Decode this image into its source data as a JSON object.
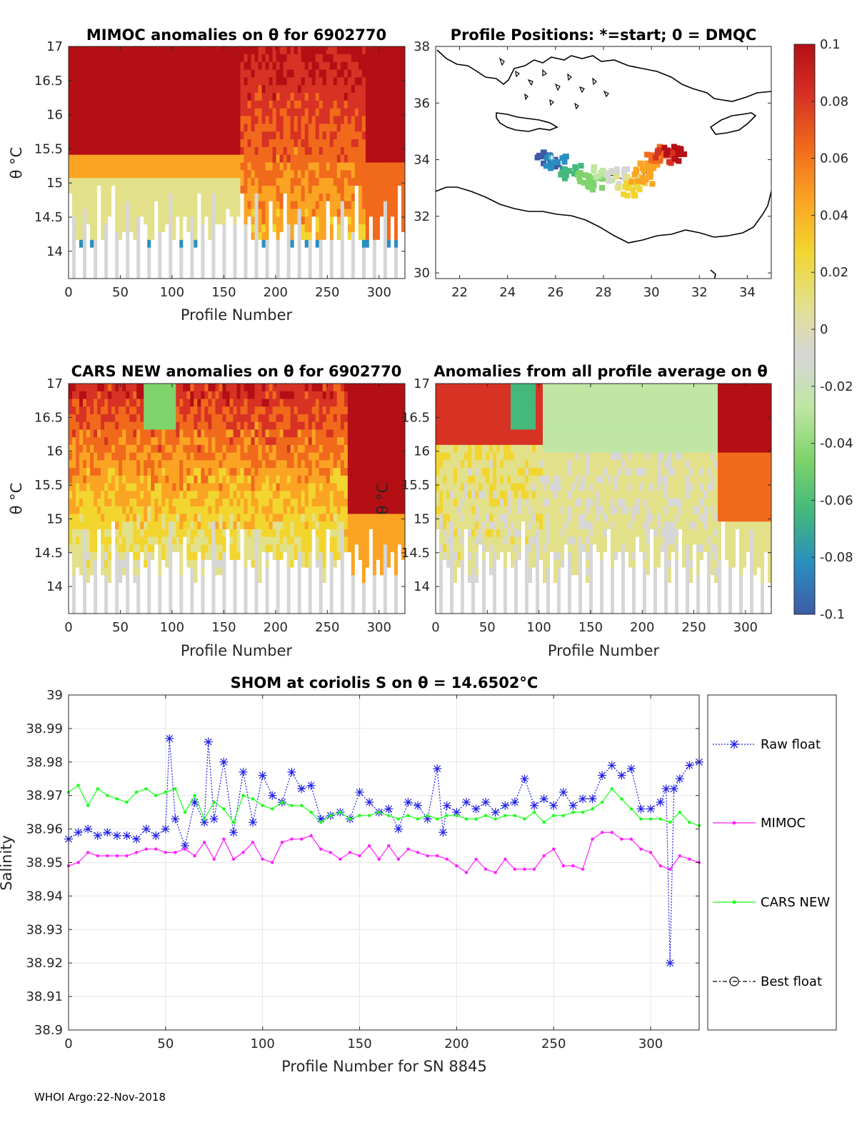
{
  "footer": "WHOI Argo:22-Nov-2018",
  "colorbar": {
    "ticks": [
      "0.1",
      "0.08",
      "0.06",
      "0.04",
      "0.02",
      "0",
      "-0.02",
      "-0.04",
      "-0.06",
      "-0.08",
      "-0.1"
    ],
    "colors": [
      "#B40F14",
      "#D73224",
      "#F16A1C",
      "#FBA423",
      "#F2D52F",
      "#E3E08A",
      "#D6D6D6",
      "#BFE6A3",
      "#7FD46B",
      "#43B97B",
      "#2A8FBF",
      "#3D5BA6"
    ]
  },
  "colors": {
    "raw": "#1f1fe6",
    "mimoc": "#ff1fff",
    "cars": "#19ff19",
    "best": "#000000",
    "grid": "#e6e6e6"
  },
  "chart_data": [
    {
      "type": "heatmap",
      "title": "MIMOC anomalies on θ  for 6902770",
      "xlabel": "Profile Number",
      "ylabel": "θ °C",
      "xlim": [
        0,
        325
      ],
      "ylim": [
        13.6,
        17
      ],
      "xticks": [
        "0",
        "50",
        "100",
        "150",
        "200",
        "250",
        "300"
      ],
      "yticks": [
        "14",
        "14.5",
        "15",
        "15.5",
        "16",
        "16.5",
        "17"
      ]
    },
    {
      "type": "scatter",
      "title": "Profile Positions: *=start; 0 = DMQC",
      "xlim": [
        21,
        35
      ],
      "ylim": [
        29.8,
        38
      ],
      "xticks": [
        "22",
        "24",
        "26",
        "28",
        "30",
        "32",
        "34"
      ],
      "yticks": [
        "30",
        "32",
        "34",
        "36",
        "38"
      ],
      "positions": [
        {
          "lon": 25.7,
          "lat": 34.0
        },
        {
          "lon": 26.0,
          "lat": 33.9
        },
        {
          "lon": 26.6,
          "lat": 33.6
        },
        {
          "lon": 27.2,
          "lat": 33.4
        },
        {
          "lon": 27.6,
          "lat": 33.2
        },
        {
          "lon": 28.0,
          "lat": 33.5
        },
        {
          "lon": 28.6,
          "lat": 33.4
        },
        {
          "lon": 29.0,
          "lat": 33.2
        },
        {
          "lon": 29.3,
          "lat": 33.0
        },
        {
          "lon": 29.6,
          "lat": 33.4
        },
        {
          "lon": 30.0,
          "lat": 33.8
        },
        {
          "lon": 30.2,
          "lat": 34.2
        },
        {
          "lon": 30.6,
          "lat": 34.1
        },
        {
          "lon": 31.0,
          "lat": 34.2
        }
      ]
    },
    {
      "type": "heatmap",
      "title": "CARS NEW anomalies on θ for 6902770",
      "xlabel": "Profile Number",
      "ylabel": "θ °C",
      "xlim": [
        0,
        325
      ],
      "ylim": [
        13.6,
        17
      ],
      "xticks": [
        "0",
        "50",
        "100",
        "150",
        "200",
        "250",
        "300"
      ],
      "yticks": [
        "14",
        "14.5",
        "15",
        "15.5",
        "16",
        "16.5",
        "17"
      ]
    },
    {
      "type": "heatmap",
      "title": "Anomalies from all profile average on θ",
      "xlabel": "Profile Number",
      "ylabel": "θ °C",
      "xlim": [
        0,
        325
      ],
      "ylim": [
        13.6,
        17
      ],
      "xticks": [
        "0",
        "50",
        "100",
        "150",
        "200",
        "250",
        "300"
      ],
      "yticks": [
        "14",
        "14.5",
        "15",
        "15.5",
        "16",
        "16.5",
        "17"
      ]
    },
    {
      "type": "line",
      "title": "SHOM at coriolis S on θ = 14.6502°C",
      "xlabel": "Profile Number for SN 8845",
      "ylabel": "Salinity",
      "xlim": [
        0,
        325
      ],
      "ylim": [
        38.9,
        39
      ],
      "xticks": [
        "0",
        "50",
        "100",
        "150",
        "200",
        "250",
        "300"
      ],
      "yticks": [
        "38.9",
        "38.91",
        "38.92",
        "38.93",
        "38.94",
        "38.95",
        "38.96",
        "38.97",
        "38.98",
        "38.99",
        "39"
      ],
      "legend": [
        "Raw float",
        "MIMOC",
        "CARS NEW",
        "Best float"
      ],
      "series": [
        {
          "name": "Raw float",
          "x": [
            0,
            5,
            10,
            15,
            20,
            25,
            30,
            35,
            40,
            45,
            50,
            52,
            55,
            60,
            65,
            70,
            72,
            75,
            80,
            85,
            90,
            95,
            100,
            105,
            110,
            115,
            120,
            125,
            130,
            135,
            140,
            145,
            150,
            155,
            160,
            165,
            170,
            175,
            180,
            185,
            190,
            193,
            195,
            200,
            205,
            210,
            215,
            220,
            225,
            230,
            235,
            240,
            245,
            250,
            255,
            260,
            265,
            270,
            275,
            280,
            285,
            290,
            295,
            300,
            305,
            308,
            310,
            312,
            315,
            320,
            325
          ],
          "values": [
            38.957,
            38.959,
            38.96,
            38.958,
            38.959,
            38.958,
            38.958,
            38.957,
            38.96,
            38.958,
            38.96,
            38.987,
            38.963,
            38.955,
            38.968,
            38.962,
            38.986,
            38.963,
            38.98,
            38.959,
            38.977,
            38.962,
            38.976,
            38.97,
            38.968,
            38.977,
            38.972,
            38.973,
            38.963,
            38.964,
            38.965,
            38.963,
            38.971,
            38.968,
            38.965,
            38.966,
            38.96,
            38.968,
            38.967,
            38.963,
            38.978,
            38.959,
            38.967,
            38.965,
            38.968,
            38.966,
            38.968,
            38.965,
            38.967,
            38.968,
            38.975,
            38.967,
            38.969,
            38.967,
            38.971,
            38.967,
            38.969,
            38.969,
            38.976,
            38.979,
            38.976,
            38.978,
            38.966,
            38.966,
            38.968,
            38.972,
            38.92,
            38.972,
            38.975,
            38.979,
            38.98
          ]
        },
        {
          "name": "MIMOC",
          "x": [
            0,
            5,
            10,
            15,
            20,
            25,
            30,
            35,
            40,
            45,
            50,
            55,
            60,
            65,
            70,
            75,
            80,
            85,
            90,
            95,
            100,
            105,
            110,
            115,
            120,
            125,
            130,
            135,
            140,
            145,
            150,
            155,
            160,
            165,
            170,
            175,
            180,
            185,
            190,
            195,
            200,
            205,
            210,
            215,
            220,
            225,
            230,
            235,
            240,
            245,
            250,
            255,
            260,
            265,
            270,
            275,
            280,
            285,
            290,
            295,
            300,
            305,
            310,
            315,
            320,
            325
          ],
          "values": [
            38.949,
            38.95,
            38.953,
            38.952,
            38.952,
            38.952,
            38.952,
            38.953,
            38.954,
            38.954,
            38.953,
            38.953,
            38.954,
            38.952,
            38.956,
            38.951,
            38.957,
            38.951,
            38.953,
            38.956,
            38.951,
            38.95,
            38.956,
            38.957,
            38.957,
            38.958,
            38.954,
            38.953,
            38.951,
            38.953,
            38.952,
            38.955,
            38.951,
            38.955,
            38.951,
            38.954,
            38.953,
            38.952,
            38.952,
            38.951,
            38.949,
            38.947,
            38.951,
            38.948,
            38.947,
            38.951,
            38.948,
            38.948,
            38.948,
            38.952,
            38.954,
            38.949,
            38.949,
            38.948,
            38.957,
            38.959,
            38.959,
            38.957,
            38.957,
            38.954,
            38.953,
            38.949,
            38.948,
            38.952,
            38.951,
            38.95
          ]
        },
        {
          "name": "CARS NEW",
          "x": [
            0,
            5,
            10,
            15,
            20,
            25,
            30,
            35,
            40,
            45,
            50,
            55,
            60,
            65,
            70,
            75,
            80,
            85,
            90,
            95,
            100,
            105,
            110,
            115,
            120,
            125,
            130,
            135,
            140,
            145,
            150,
            155,
            160,
            165,
            170,
            175,
            180,
            185,
            190,
            195,
            200,
            205,
            210,
            215,
            220,
            225,
            230,
            235,
            240,
            245,
            250,
            255,
            260,
            265,
            270,
            275,
            280,
            285,
            290,
            295,
            300,
            305,
            310,
            315,
            320,
            325
          ],
          "values": [
            38.971,
            38.973,
            38.967,
            38.972,
            38.97,
            38.969,
            38.968,
            38.971,
            38.972,
            38.97,
            38.971,
            38.972,
            38.965,
            38.97,
            38.963,
            38.968,
            38.966,
            38.962,
            38.97,
            38.969,
            38.967,
            38.966,
            38.968,
            38.967,
            38.967,
            38.965,
            38.962,
            38.964,
            38.965,
            38.963,
            38.964,
            38.964,
            38.965,
            38.964,
            38.963,
            38.964,
            38.963,
            38.964,
            38.963,
            38.964,
            38.964,
            38.963,
            38.963,
            38.964,
            38.963,
            38.964,
            38.964,
            38.963,
            38.965,
            38.962,
            38.964,
            38.964,
            38.965,
            38.965,
            38.966,
            38.968,
            38.972,
            38.969,
            38.966,
            38.963,
            38.963,
            38.963,
            38.962,
            38.965,
            38.962,
            38.961
          ]
        },
        {
          "name": "Best float",
          "x": [],
          "values": []
        }
      ]
    }
  ]
}
